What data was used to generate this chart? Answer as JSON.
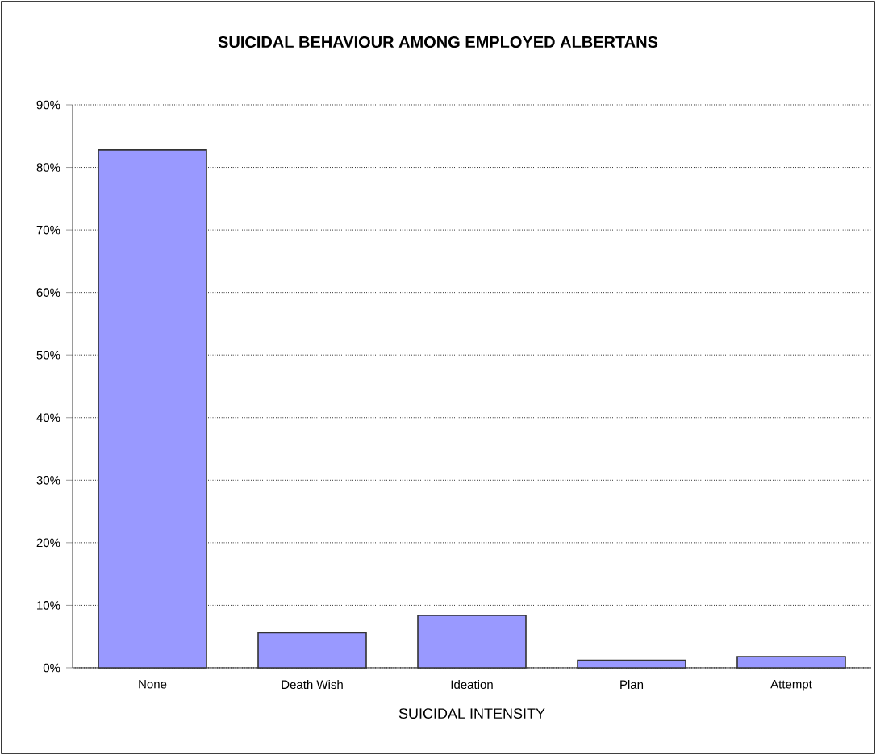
{
  "chart_data": {
    "type": "bar",
    "title": "SUICIDAL BEHAVIOUR AMONG EMPLOYED ALBERTANS",
    "xlabel": "SUICIDAL INTENSITY",
    "categories": [
      "None",
      "Death Wish",
      "Ideation",
      "Plan",
      "Attempt"
    ],
    "values": [
      82.8,
      5.6,
      8.4,
      1.2,
      1.8
    ],
    "color": "#9999ff",
    "ylim": [
      0,
      90
    ],
    "yticks": [
      {
        "value": 0,
        "label": "0%"
      },
      {
        "value": 10,
        "label": "10%"
      },
      {
        "value": 20,
        "label": "20%"
      },
      {
        "value": 30,
        "label": "30%"
      },
      {
        "value": 40,
        "label": "40%"
      },
      {
        "value": 50,
        "label": "50%"
      },
      {
        "value": 60,
        "label": "60%"
      },
      {
        "value": 70,
        "label": "70%"
      },
      {
        "value": 80,
        "label": "80%"
      },
      {
        "value": 90,
        "label": "90%"
      }
    ],
    "grid": "y"
  }
}
